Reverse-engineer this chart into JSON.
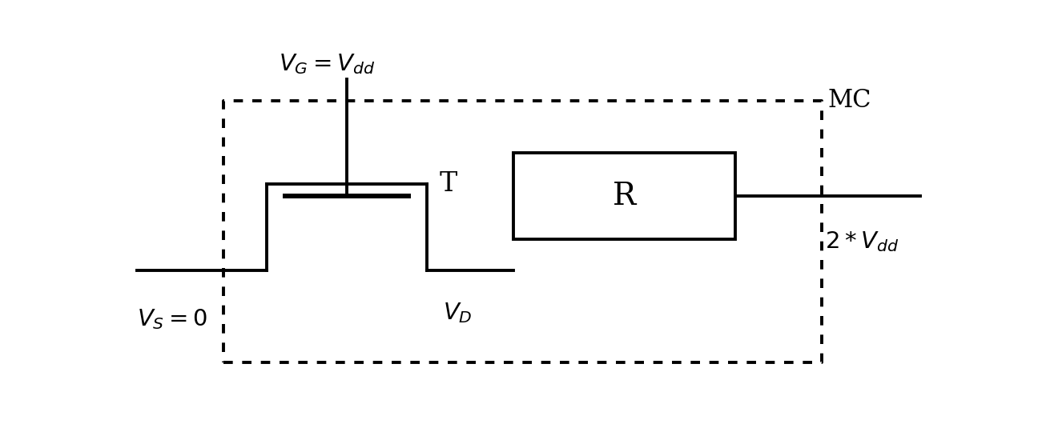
{
  "bg_color": "#ffffff",
  "line_color": "#000000",
  "vs_label": "$V_S = 0$",
  "vg_label": "$V_G = V_{dd}$",
  "vd_label": "$V_D$",
  "vdd2_label": "$2*V_{dd}$",
  "mc_label": "MC",
  "t_label": "T",
  "r_label": "R",
  "figsize": [
    12.96,
    5.35
  ],
  "dpi": 100,
  "xlim": [
    0,
    13
  ],
  "ylim": [
    0,
    5.35
  ],
  "wire_y_low": 1.8,
  "wire_y_high": 3.2,
  "src_x": 2.2,
  "drain_x": 4.8,
  "gate_x": 3.5,
  "gate_plate_y": 3.0,
  "gate_wire_top_y": 4.9,
  "res_x0": 6.2,
  "res_x1": 9.8,
  "res_y0": 2.3,
  "res_y1": 3.7,
  "dash_x0": 1.5,
  "dash_x1": 11.2,
  "dash_y0": 0.3,
  "dash_y1": 4.55,
  "left_wire_x0": 0.1,
  "right_wire_x1": 12.8
}
